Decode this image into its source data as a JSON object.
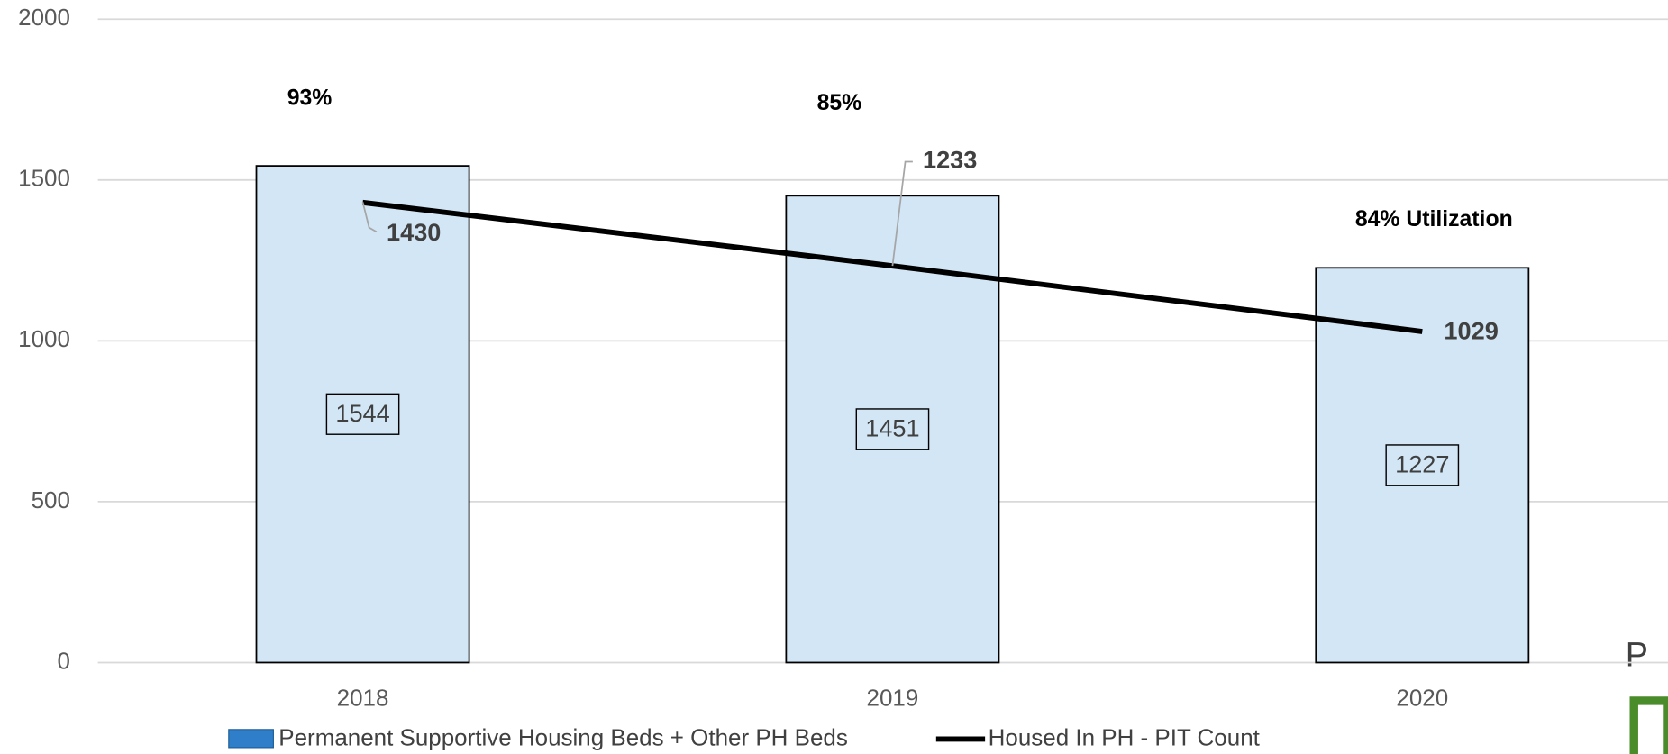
{
  "chart_data": {
    "type": "bar_line",
    "categories": [
      "2018",
      "2019",
      "2020"
    ],
    "series": [
      {
        "name": "Permanent Supportive Housing Beds + Other PH Beds",
        "type": "bar",
        "color": "#d2e6f5",
        "values": [
          1544,
          1451,
          1227
        ]
      },
      {
        "name": "Housed In PH - PIT Count",
        "type": "line",
        "color": "#000000",
        "values": [
          1430,
          1233,
          1029
        ]
      }
    ],
    "annotations": [
      "93%",
      "85%",
      "84% Utilization"
    ],
    "ylim": [
      0,
      2000
    ],
    "yticks": [
      0,
      500,
      1000,
      1500,
      2000
    ],
    "grid": true,
    "legend": "bottom"
  },
  "logo": {
    "text": "P A"
  }
}
